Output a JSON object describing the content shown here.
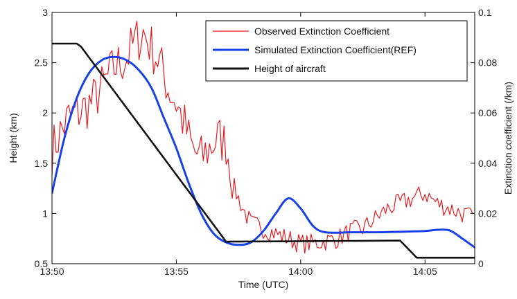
{
  "chart_data": {
    "type": "line",
    "xlabel": "Time (UTC)",
    "ylabel_left": "Height (km)",
    "ylabel_right": "Extinction coefficient (/km)",
    "x_range": [
      "13:50",
      "14:07"
    ],
    "x_ticks": [
      "13:50",
      "13:55",
      "14:00",
      "14:05"
    ],
    "ylim_left": [
      0.5,
      3
    ],
    "y_ticks_left": [
      0.5,
      1,
      1.5,
      2,
      2.5,
      3
    ],
    "ylim_right": [
      0,
      0.1
    ],
    "y_ticks_right": [
      0,
      0.02,
      0.04,
      0.06,
      0.08,
      0.1
    ],
    "legend_position": "top-right",
    "grid": false,
    "series": [
      {
        "name": "Observed Extinction Coefficient",
        "axis": "right",
        "color": "#e8191f",
        "noise": 0.004,
        "points": [
          [
            "13:50",
            0.045
          ],
          [
            "13:50:20",
            0.052
          ],
          [
            "13:50:40",
            0.058
          ],
          [
            "13:51",
            0.06
          ],
          [
            "13:51:20",
            0.062
          ],
          [
            "13:51:40",
            0.065
          ],
          [
            "13:52",
            0.07
          ],
          [
            "13:52:30",
            0.078
          ],
          [
            "13:53",
            0.082
          ],
          [
            "13:53:20",
            0.088
          ],
          [
            "13:53:40",
            0.092
          ],
          [
            "13:54",
            0.086
          ],
          [
            "13:54:20",
            0.08
          ],
          [
            "13:54:40",
            0.07
          ],
          [
            "13:55",
            0.064
          ],
          [
            "13:55:20",
            0.055
          ],
          [
            "13:55:40",
            0.045
          ],
          [
            "13:56",
            0.042
          ],
          [
            "13:56:20",
            0.046
          ],
          [
            "13:56:40",
            0.05
          ],
          [
            "13:57",
            0.048
          ],
          [
            "13:57:20",
            0.03
          ],
          [
            "13:57:40",
            0.022
          ],
          [
            "13:58",
            0.016
          ],
          [
            "13:58:30",
            0.014
          ],
          [
            "13:59",
            0.012
          ],
          [
            "13:59:30",
            0.01
          ],
          [
            "14:00",
            0.008
          ],
          [
            "14:00:30",
            0.008
          ],
          [
            "14:01",
            0.009
          ],
          [
            "14:01:30",
            0.01
          ],
          [
            "14:02",
            0.013
          ],
          [
            "14:02:30",
            0.014
          ],
          [
            "14:03",
            0.018
          ],
          [
            "14:03:30",
            0.022
          ],
          [
            "14:04",
            0.024
          ],
          [
            "14:04:30",
            0.026
          ],
          [
            "14:05",
            0.028
          ],
          [
            "14:05:30",
            0.024
          ],
          [
            "14:06",
            0.022
          ],
          [
            "14:06:30",
            0.02
          ],
          [
            "14:07",
            0.018
          ]
        ]
      },
      {
        "name": "Simulated Extinction Coefficient(REF)",
        "axis": "right",
        "color": "#1740e6",
        "noise": 0,
        "points": [
          [
            "13:50",
            0.028
          ],
          [
            "13:50:30",
            0.05
          ],
          [
            "13:51",
            0.066
          ],
          [
            "13:51:30",
            0.076
          ],
          [
            "13:52",
            0.081
          ],
          [
            "13:52:30",
            0.0823
          ],
          [
            "13:53",
            0.081
          ],
          [
            "13:53:30",
            0.077
          ],
          [
            "13:54",
            0.07
          ],
          [
            "13:54:30",
            0.058
          ],
          [
            "13:55",
            0.046
          ],
          [
            "13:55:30",
            0.032
          ],
          [
            "13:56",
            0.02
          ],
          [
            "13:56:30",
            0.012
          ],
          [
            "13:57",
            0.0085
          ],
          [
            "13:57:30",
            0.0075
          ],
          [
            "13:58",
            0.0085
          ],
          [
            "13:58:30",
            0.013
          ],
          [
            "13:59",
            0.02
          ],
          [
            "13:59:30",
            0.026
          ],
          [
            "14:00",
            0.022
          ],
          [
            "14:00:30",
            0.015
          ],
          [
            "14:01",
            0.0125
          ],
          [
            "14:02",
            0.0125
          ],
          [
            "14:03",
            0.0125
          ],
          [
            "14:04",
            0.0127
          ],
          [
            "14:05",
            0.013
          ],
          [
            "14:05:30",
            0.0135
          ],
          [
            "14:06",
            0.0132
          ],
          [
            "14:06:30",
            0.01
          ],
          [
            "14:07",
            0.0065
          ]
        ]
      },
      {
        "name": "Height of aircraft",
        "axis": "left",
        "color": "#111111",
        "noise": 0,
        "points": [
          [
            "13:50",
            2.69
          ],
          [
            "13:51",
            2.69
          ],
          [
            "13:51:10",
            2.66
          ],
          [
            "13:57",
            0.72
          ],
          [
            "14:04",
            0.73
          ],
          [
            "14:04:40",
            0.56
          ],
          [
            "14:05:20",
            0.56
          ],
          [
            "14:07",
            0.56
          ]
        ]
      }
    ]
  }
}
